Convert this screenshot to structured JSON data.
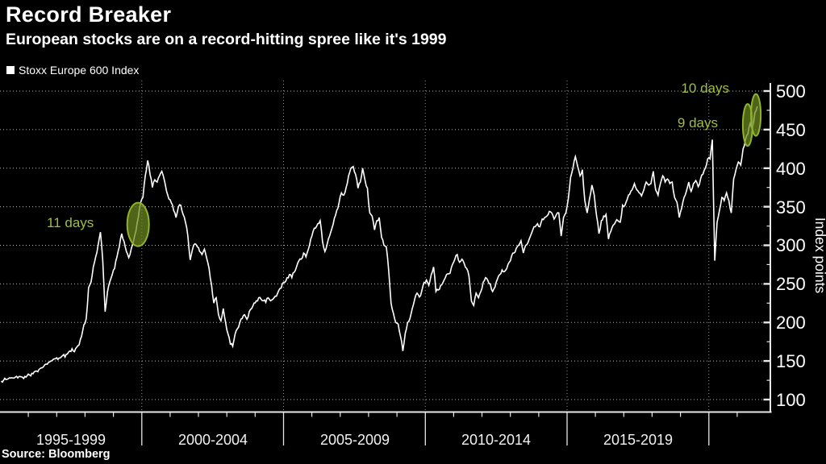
{
  "header": {
    "title": "Record Breaker",
    "subtitle": "European stocks are on a record-hitting spree like it's 1999"
  },
  "legend": {
    "label": "Stoxx Europe 600 Index",
    "marker_color": "#ffffff"
  },
  "source": "Source: Bloomberg",
  "colors": {
    "background": "#000000",
    "line": "#ffffff",
    "annotation_green": "#a0be3c",
    "ellipse_stroke": "#8fb32c",
    "ellipse_fill": "#6e8a20",
    "grid_horizontal": "#b5b5b5",
    "grid_vertical": "#8f8f8f",
    "axis": "#e8e8e8"
  },
  "chart_data": {
    "type": "line",
    "title": "Record Breaker",
    "series_name": "Stoxx Europe 600 Index",
    "interval": "monthly",
    "start_year": 1995,
    "end_label": "2021-09",
    "x_axis": {
      "labels": [
        "1995-1999",
        "2000-2004",
        "2005-2009",
        "2010-2014",
        "2015-2019"
      ],
      "period_boundary_years": [
        2000,
        2005,
        2010,
        2015,
        2020
      ],
      "minor_tick_step_years": 1,
      "first_year": 1995,
      "last_tick_year": 2021
    },
    "y_axis": {
      "title": "Index points",
      "ticks": [
        "500",
        "450",
        "400",
        "350",
        "300",
        "250",
        "200",
        "150",
        "100"
      ],
      "minor_step": 25,
      "range": [
        100,
        500
      ],
      "side": "right"
    },
    "grid": "dotted",
    "legend_position": "top-left",
    "values": [
      124,
      125,
      126,
      127,
      128,
      128,
      129,
      128,
      130,
      129,
      130,
      131,
      132,
      134,
      136,
      137,
      139,
      141,
      143,
      146,
      148,
      150,
      152,
      153,
      152,
      154,
      157,
      155,
      159,
      163,
      166,
      162,
      168,
      171,
      182,
      197,
      205,
      245,
      252,
      272,
      285,
      300,
      317,
      280,
      214,
      240,
      253,
      262,
      270,
      285,
      298,
      315,
      305,
      292,
      284,
      295,
      305,
      318,
      336,
      355,
      362,
      390,
      410,
      392,
      375,
      385,
      382,
      390,
      396,
      385,
      370,
      360,
      355,
      345,
      336,
      350,
      352,
      340,
      330,
      312,
      281,
      295,
      302,
      298,
      292,
      288,
      295,
      283,
      270,
      249,
      225,
      232,
      210,
      202,
      218,
      200,
      185,
      172,
      169,
      185,
      192,
      200,
      205,
      210,
      204,
      214,
      218,
      225,
      228,
      232,
      230,
      228,
      226,
      232,
      228,
      230,
      234,
      238,
      244,
      250,
      252,
      258,
      262,
      258,
      265,
      272,
      280,
      282,
      290,
      285,
      295,
      308,
      318,
      322,
      328,
      332,
      305,
      292,
      302,
      312,
      322,
      335,
      345,
      355,
      368,
      365,
      375,
      390,
      400,
      402,
      392,
      374,
      382,
      400,
      384,
      374,
      342,
      338,
      320,
      332,
      336,
      310,
      300,
      298,
      268,
      225,
      212,
      200,
      198,
      182,
      163,
      186,
      200,
      205,
      218,
      230,
      238,
      233,
      241,
      252,
      255,
      248,
      262,
      272,
      240,
      242,
      248,
      252,
      258,
      263,
      264,
      275,
      282,
      288,
      278,
      282,
      276,
      270,
      260,
      228,
      222,
      238,
      232,
      240,
      252,
      258,
      254,
      250,
      240,
      246,
      256,
      262,
      268,
      266,
      270,
      278,
      286,
      290,
      296,
      300,
      306,
      290,
      300,
      304,
      312,
      320,
      324,
      328,
      324,
      334,
      336,
      338,
      344,
      342,
      334,
      340,
      342,
      312,
      336,
      342,
      360,
      388,
      400,
      415,
      402,
      390,
      398,
      358,
      342,
      360,
      378,
      365,
      338,
      315,
      332,
      338,
      340,
      308,
      318,
      326,
      330,
      332,
      330,
      352,
      352,
      360,
      366,
      372,
      380,
      372,
      368,
      364,
      372,
      382,
      378,
      380,
      396,
      372,
      365,
      380,
      390,
      382,
      386,
      380,
      382,
      362,
      356,
      336,
      348,
      362,
      370,
      382,
      370,
      380,
      384,
      376,
      386,
      392,
      400,
      412,
      412,
      437,
      280,
      330,
      345,
      362,
      358,
      368,
      358,
      342,
      386,
      398,
      408,
      404,
      425,
      437,
      444,
      458,
      452,
      472,
      480
    ],
    "annotations": [
      {
        "label": "11 days",
        "year": 1999.87,
        "index_value": 327
      },
      {
        "label": "9 days",
        "year": 2021.37,
        "index_value": 456
      },
      {
        "label": "10 days",
        "year": 2021.66,
        "index_value": 469
      }
    ]
  }
}
